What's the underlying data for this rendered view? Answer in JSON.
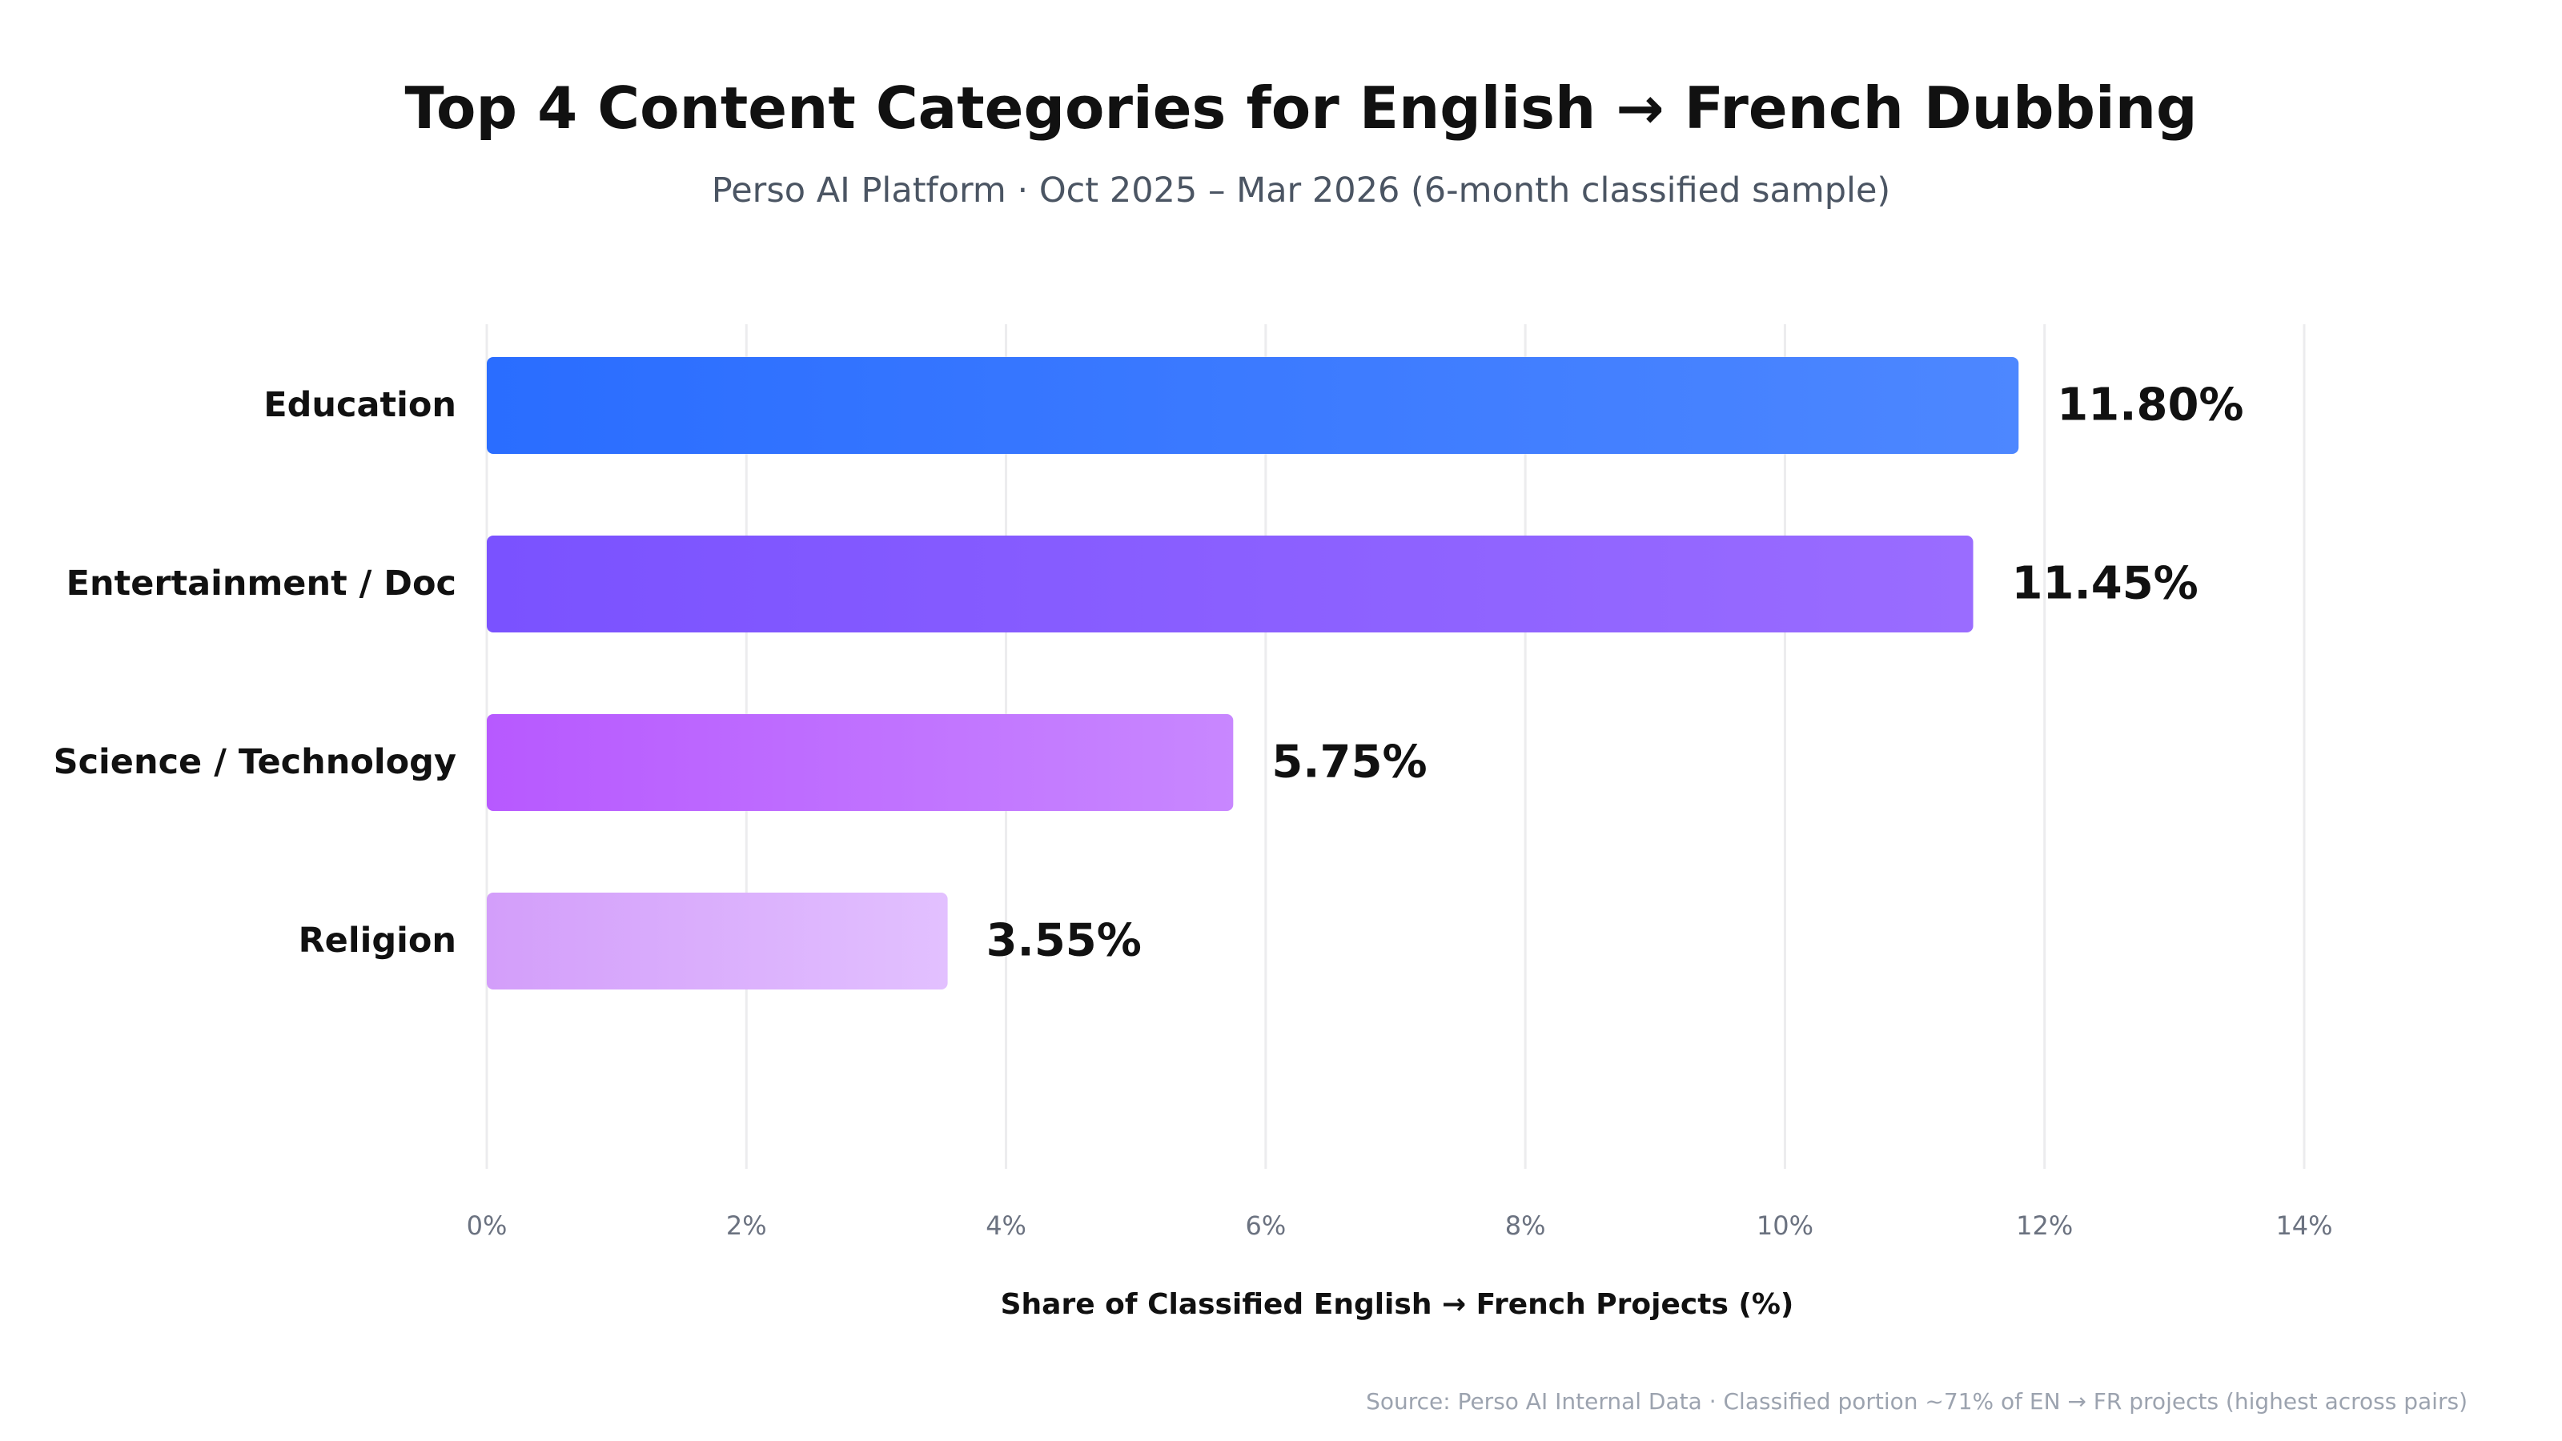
{
  "chart_data": {
    "type": "bar",
    "orientation": "horizontal",
    "title": "Top 4 Content Categories for English → French Dubbing",
    "subtitle": "Perso AI Platform · Oct 2025 – Mar 2026 (6-month classified sample)",
    "categories": [
      "Education",
      "Entertainment / Doc",
      "Science / Technology",
      "Religion"
    ],
    "values": [
      11.8,
      11.45,
      5.75,
      3.55
    ],
    "value_labels": [
      "11.80%",
      "11.45%",
      "5.75%",
      "3.55%"
    ],
    "xlabel": "Share of Classified English → French Projects (%)",
    "xlim": [
      0,
      14
    ],
    "xticks": [
      0,
      2,
      4,
      6,
      8,
      10,
      12,
      14
    ],
    "xtick_labels": [
      "0%",
      "2%",
      "4%",
      "6%",
      "8%",
      "10%",
      "12%",
      "14%"
    ],
    "grid": true,
    "legend": "none",
    "source": "Source: Perso AI Internal Data · Classified portion ~71% of EN → FR projects (highest across pairs)",
    "bar_colors": [
      [
        "#2a6dff",
        "#4d87ff"
      ],
      [
        "#7a52ff",
        "#9a6cff"
      ],
      [
        "#b759ff",
        "#c887ff"
      ],
      [
        "#d39efa",
        "#e2c0ff"
      ]
    ]
  }
}
